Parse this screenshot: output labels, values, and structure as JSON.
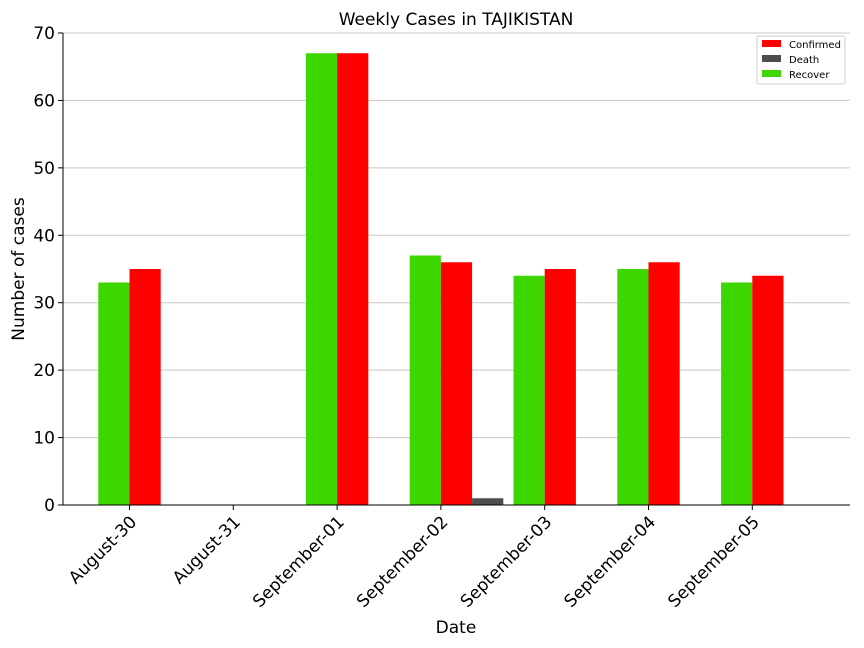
{
  "chart_data": {
    "type": "bar",
    "title": "Weekly Cases in TAJIKISTAN",
    "xlabel": "Date",
    "ylabel": "Number of cases",
    "categories": [
      "August-30",
      "August-31",
      "September-01",
      "September-02",
      "September-03",
      "September-04",
      "September-05"
    ],
    "ylim": [
      0,
      70
    ],
    "yticks": [
      0,
      10,
      20,
      30,
      40,
      50,
      60,
      70
    ],
    "grid": "horizontal",
    "legend_position": "top-right",
    "series": [
      {
        "name": "Recover",
        "color": "#3dd600",
        "values": [
          33,
          0,
          67,
          37,
          34,
          35,
          33
        ]
      },
      {
        "name": "Confirmed",
        "color": "#ff0000",
        "values": [
          35,
          0,
          67,
          36,
          35,
          36,
          34
        ]
      },
      {
        "name": "Death",
        "color": "#4d4d4d",
        "values": [
          0,
          0,
          0,
          1,
          0,
          0,
          0
        ]
      }
    ],
    "legend_order": [
      "Confirmed",
      "Death",
      "Recover"
    ]
  }
}
